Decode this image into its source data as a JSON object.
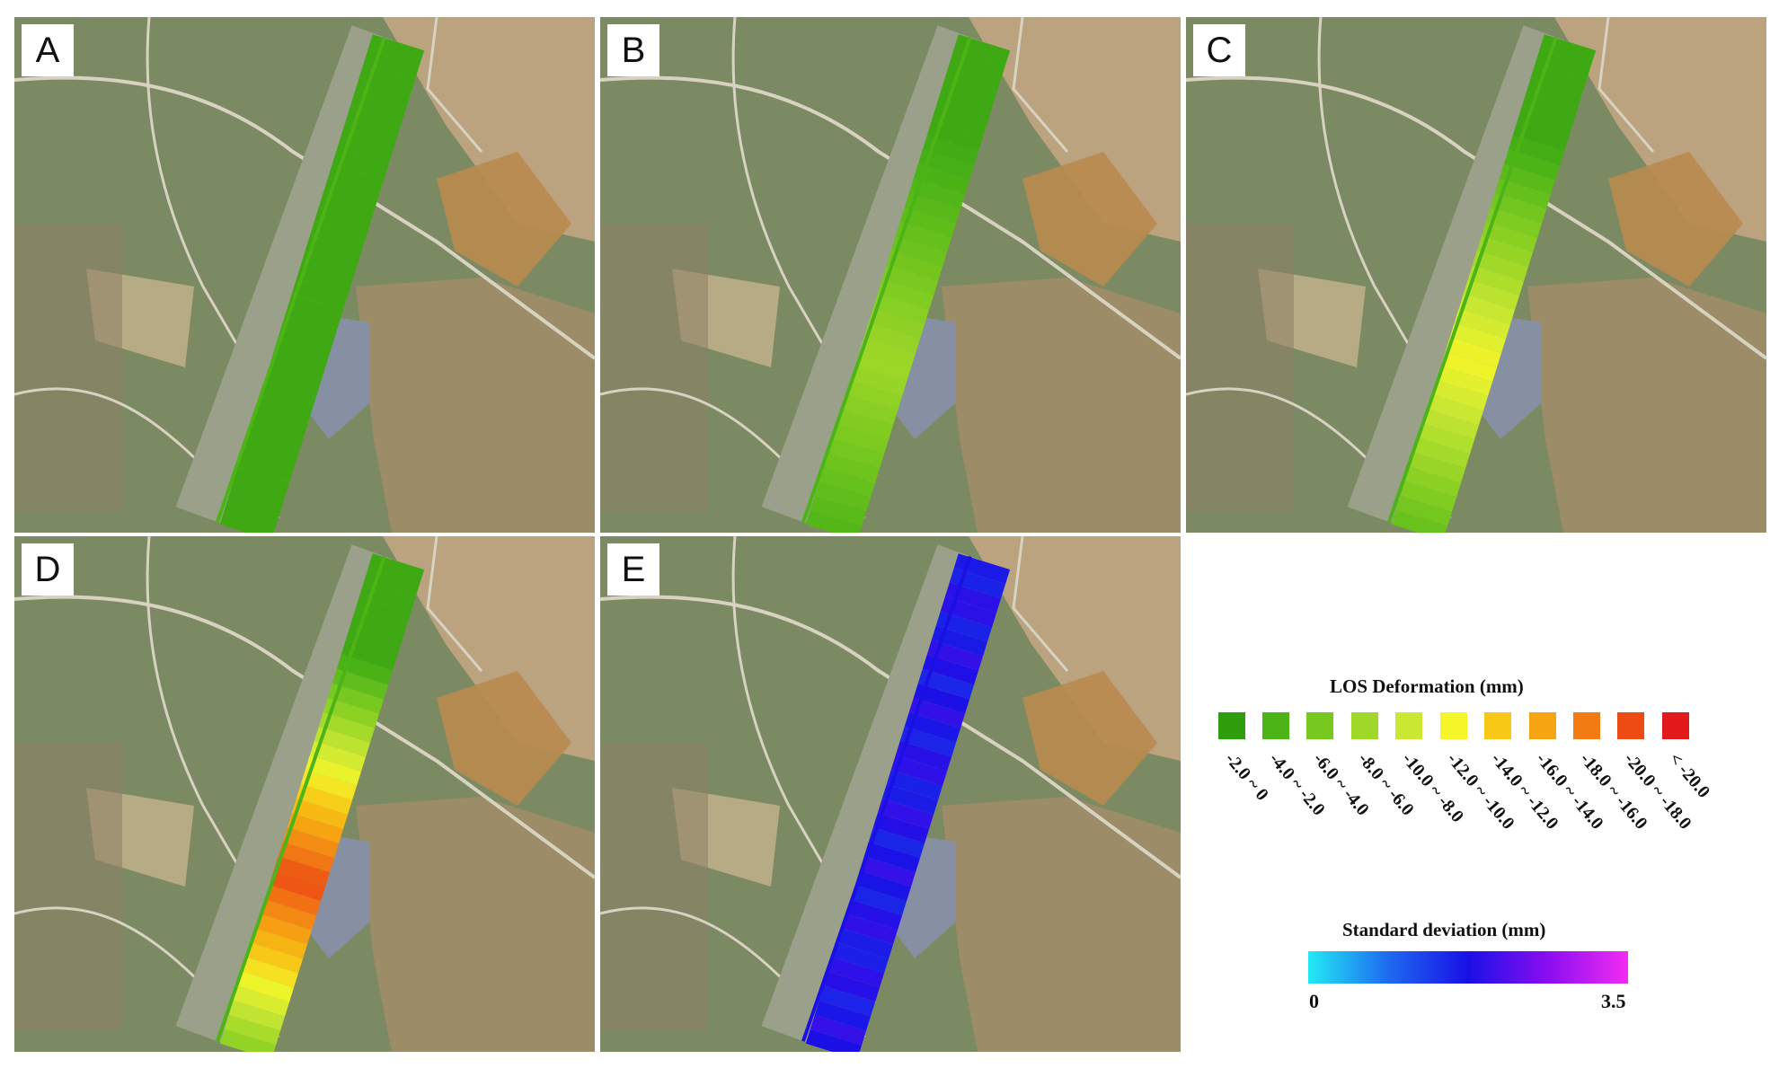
{
  "panels": [
    {
      "id": "A",
      "label": "A",
      "mode": "deformation",
      "peak": 0.0
    },
    {
      "id": "B",
      "label": "B",
      "mode": "deformation",
      "peak": 0.25
    },
    {
      "id": "C",
      "label": "C",
      "mode": "deformation",
      "peak": 0.45
    },
    {
      "id": "D",
      "label": "D",
      "mode": "deformation",
      "peak": 0.85
    },
    {
      "id": "E",
      "label": "E",
      "mode": "stddev",
      "peak": 0.5
    }
  ],
  "los_legend": {
    "title": "LOS Deformation (mm)",
    "classes": [
      {
        "label": "-2.0 ~ 0",
        "color": "#2f9e0c"
      },
      {
        "label": "-4.0 ~ -2.0",
        "color": "#4db417"
      },
      {
        "label": "-6.0 ~ -4.0",
        "color": "#77c81f"
      },
      {
        "label": "-8.0 ~ -6.0",
        "color": "#9fd828"
      },
      {
        "label": "-10.0 ~ -8.0",
        "color": "#cae833"
      },
      {
        "label": "-12.0 ~ -10.0",
        "color": "#f3f529"
      },
      {
        "label": "-14.0 ~ -12.0",
        "color": "#f7c916"
      },
      {
        "label": "-16.0 ~ -14.0",
        "color": "#f6a412"
      },
      {
        "label": "-18.0 ~ -16.0",
        "color": "#f27b14"
      },
      {
        "label": "-20.0 ~ -18.0",
        "color": "#ec4c13"
      },
      {
        "label": "< -20.0",
        "color": "#e31a1c"
      }
    ]
  },
  "sd_legend": {
    "title": "Standard deviation (mm)",
    "min_label": "0",
    "max_label": "3.5",
    "gradient": [
      "#22eaf2",
      "#1e6af0",
      "#1a10e6",
      "#8a0ef0",
      "#f22cf2"
    ]
  }
}
